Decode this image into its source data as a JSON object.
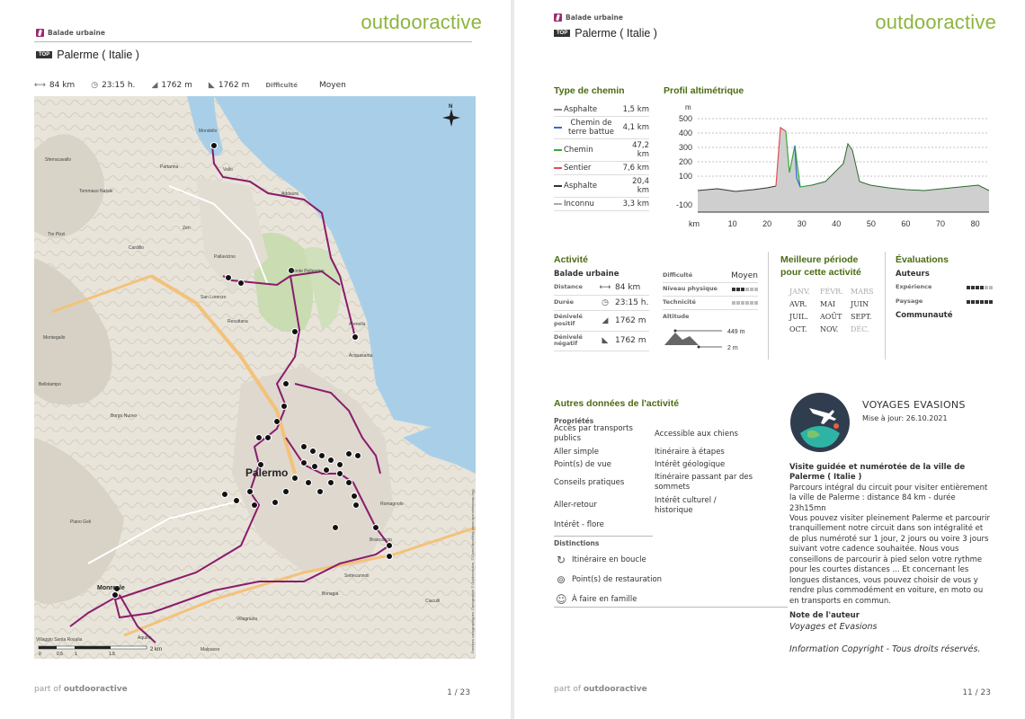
{
  "page1": {
    "brand": "outdooractive",
    "category": "Balade urbaine",
    "top_badge": "TOP",
    "title": "Palerme ( Italie )",
    "stats": {
      "distance": "84 km",
      "duration": "23:15 h.",
      "ascent": "1762 m",
      "descent": "1762 m",
      "difficulty_label": "Difficulté",
      "difficulty_value": "Moyen"
    },
    "map": {
      "city_label": "Palermo",
      "places": [
        "Mondello",
        "Vallo",
        "Partanna",
        "Addaura",
        "Pallavicino",
        "San Lorenzo",
        "Acquasanta",
        "Resuttana",
        "Zen",
        "Sferracavallo",
        "Tommaso Natale",
        "Cardillo",
        "Tre Pizzi",
        "Montegallo",
        "Bellolampo",
        "Borgo Nuovo",
        "Monreale",
        "Aquino",
        "Villaggio Santa Rosalia",
        "Malpasso",
        "Piano Geli",
        "Ciaculli",
        "Brancaccio",
        "Bonagia",
        "Villagrazia",
        "Settecannoli",
        "Romagnolo",
        "Arenella",
        "Monte Pellegrino"
      ],
      "scale_label": "2 km",
      "copyright": "Données cartographiques: Cartographie © Outdooractive, © OpenStreetMap (www.openstreetmap.org)"
    },
    "footer": {
      "part_of": "part of",
      "brand": "outdooractive",
      "page": "1 / 23"
    }
  },
  "page2": {
    "brand": "outdooractive",
    "category": "Balade urbaine",
    "top_badge": "TOP",
    "title": "Palerme ( Italie )",
    "track_type": {
      "heading": "Type de chemin",
      "rows": [
        {
          "name": "Asphalte",
          "value": "1,5 km",
          "color": "#888888"
        },
        {
          "name": "Chemin de terre battue",
          "value": "4,1 km",
          "color": "#2e6fd0"
        },
        {
          "name": "Chemin",
          "value": "47,2 km",
          "color": "#39a839"
        },
        {
          "name": "Sentier",
          "value": "7,6 km",
          "color": "#e05050"
        },
        {
          "name": "Asphalte",
          "value": "20,4 km",
          "color": "#333333"
        },
        {
          "name": "Inconnu",
          "value": "3,3 km",
          "color": "#aaaaaa"
        }
      ]
    },
    "profile": {
      "heading": "Profil altimétrique",
      "y_unit": "m",
      "y_ticks": [
        "500",
        "400",
        "300",
        "200",
        "100",
        "-100"
      ],
      "x_unit": "km",
      "x_ticks": [
        "10",
        "20",
        "30",
        "40",
        "50",
        "60",
        "70",
        "80"
      ]
    },
    "activity": {
      "heading": "Activité",
      "type": "Balade urbaine",
      "rows": [
        {
          "label": "Distance",
          "icon": "⟷",
          "value": "84  km"
        },
        {
          "label": "Durée",
          "icon": "◷",
          "value": "23:15  h."
        },
        {
          "label": "Dénivelé positif",
          "icon": "◢",
          "value": "1762  m"
        },
        {
          "label": "Dénivelé négatif",
          "icon": "◣",
          "value": "1762  m"
        }
      ],
      "difficulty_label": "Difficulté",
      "difficulty_value": "Moyen",
      "condition_label": "Niveau physique",
      "condition_level": 3,
      "technique_label": "Technicité",
      "technique_level": 0,
      "altitude_label": "Altitude",
      "alt_max": "449 m",
      "alt_min": "2 m"
    },
    "season": {
      "heading": "Meilleure période pour cette activité",
      "months": [
        {
          "name": "JANV.",
          "active": false
        },
        {
          "name": "FÉVR.",
          "active": false
        },
        {
          "name": "MARS",
          "active": false
        },
        {
          "name": "AVR.",
          "active": true
        },
        {
          "name": "MAI",
          "active": true
        },
        {
          "name": "JUIN",
          "active": true
        },
        {
          "name": "JUIL.",
          "active": true
        },
        {
          "name": "AOÛT",
          "active": true
        },
        {
          "name": "SEPT.",
          "active": true
        },
        {
          "name": "OCT.",
          "active": true
        },
        {
          "name": "NOV.",
          "active": true
        },
        {
          "name": "DÉC.",
          "active": false
        }
      ]
    },
    "ratings": {
      "heading": "Évaluations",
      "authors_label": "Auteurs",
      "experience_label": "Expérience",
      "experience_level": 4,
      "landscape_label": "Paysage",
      "landscape_level": 6,
      "community_label": "Communauté"
    },
    "other": {
      "heading": "Autres données de l'activité",
      "props_label": "Propriétés",
      "left_props": [
        "Accès par transports publics",
        "Aller simple",
        "Point(s) de vue",
        "Conseils pratiques",
        "Aller-retour",
        "Intérêt - flore"
      ],
      "right_props": [
        "Accessible aux chiens",
        "Itinéraire à étapes",
        "Intérêt géologique",
        "Itinéraire passant par des sommets",
        "Intérêt culturel / historique"
      ],
      "dist_label": "Distinctions",
      "distinctions": [
        {
          "icon": "loop-icon",
          "label": "Itinéraire en boucle"
        },
        {
          "icon": "restaurant-icon",
          "label": "Point(s) de restauration"
        },
        {
          "icon": "family-icon",
          "label": "À faire en famille"
        }
      ]
    },
    "author": {
      "name": "VOYAGES EVASIONS",
      "updated": "Mise à jour: 26.10.2021",
      "headline": "Visite guidée et numérotée de la ville de Palerme ( Italie )",
      "intro": "Parcours intégral du circuit pour visiter entièrement la ville de Palerme : distance 84 km - durée 23h15mn",
      "body": "Vous pouvez visiter pleinement Palerme et parcourir tranquillement notre circuit dans son intégralité et de plus numéroté sur 1 jour, 2 jours ou voire 3 jours suivant votre cadence souhaitée. Nous vous conseillons de parcourir à pied selon votre rythme pour les courtes distances ... Et concernant les longues distances, vous pouvez choisir de vous y rendre plus commodément en voiture, en moto ou en transports en commun.",
      "note_label": "Note de l'auteur",
      "note_value": "Voyages et Evasions",
      "copyright": "Information Copyright - Tous droits réservés."
    },
    "footer": {
      "part_of": "part of",
      "brand": "outdooractive",
      "page": "11 / 23"
    }
  }
}
